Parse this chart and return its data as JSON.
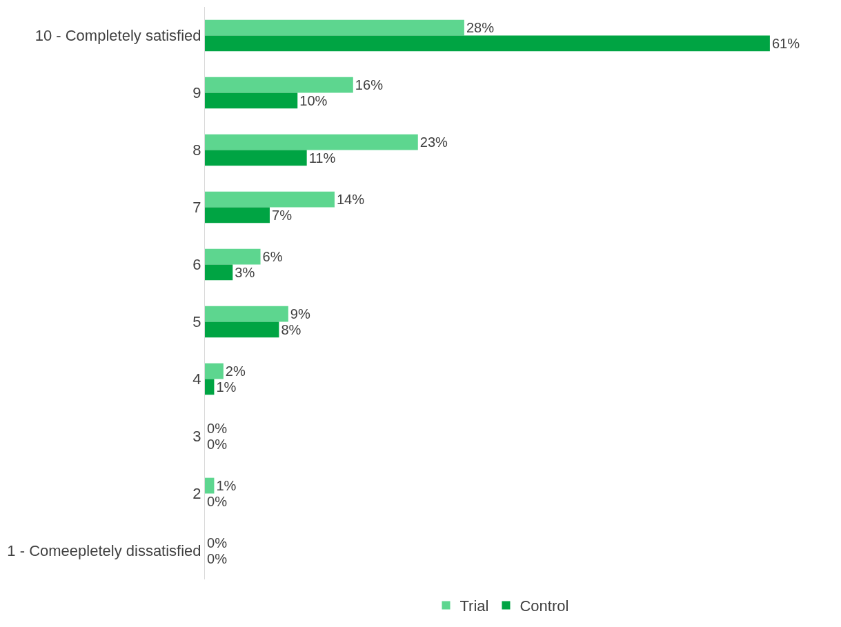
{
  "chart_data": {
    "type": "bar",
    "orientation": "horizontal",
    "categories": [
      "10 - Completely satisfied",
      "9",
      "8",
      "7",
      "6",
      "5",
      "4",
      "3",
      "2",
      "1 - Comeepletely dissatisfied"
    ],
    "series": [
      {
        "name": "Trial",
        "color": "#5dd68f",
        "values": [
          28,
          16,
          23,
          14,
          6,
          9,
          2,
          0,
          1,
          0
        ],
        "value_labels": [
          "28%",
          "16%",
          "23%",
          "14%",
          "6%",
          "9%",
          "2%",
          "0%",
          "1%",
          "0%"
        ]
      },
      {
        "name": "Control",
        "color": "#00a443",
        "values": [
          61,
          10,
          11,
          7,
          3,
          8,
          1,
          0,
          0,
          0
        ],
        "value_labels": [
          "61%",
          "10%",
          "11%",
          "7%",
          "3%",
          "8%",
          "1%",
          "0%",
          "0%",
          "0%"
        ]
      }
    ],
    "legend": "bottom",
    "tick_labels": "y"
  }
}
